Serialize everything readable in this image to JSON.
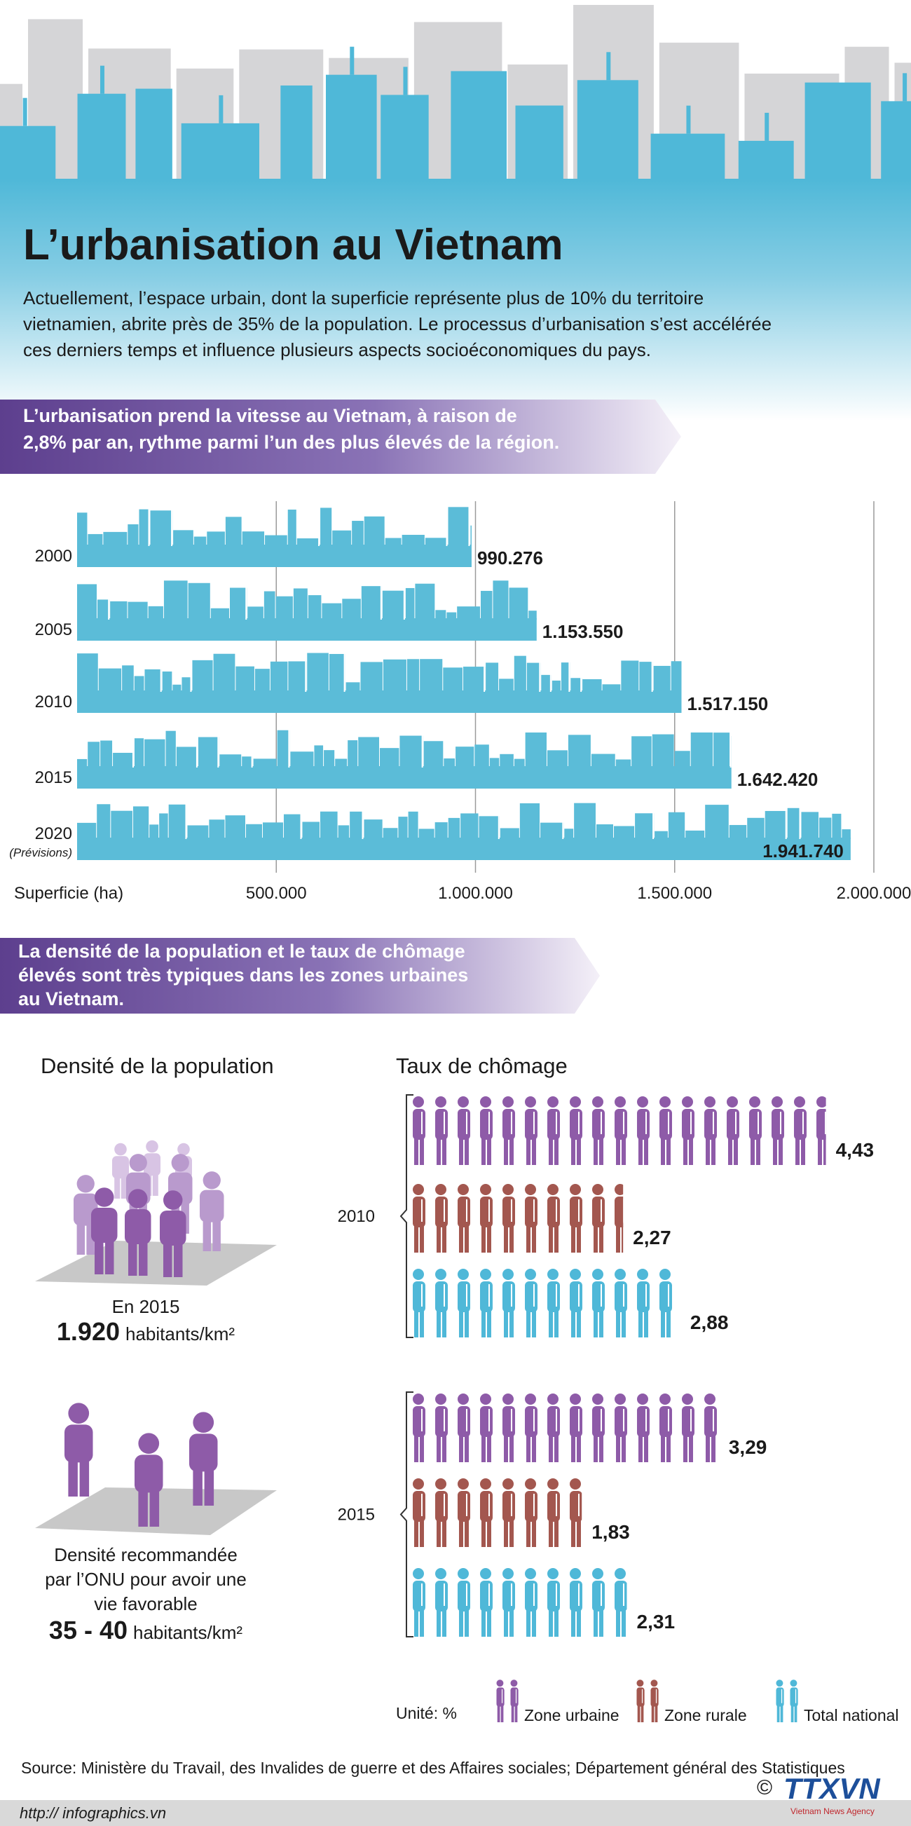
{
  "header": {
    "title": "L’urbanisation au Vietnam",
    "intro": [
      "Actuellement, l’espace urbain, dont la superficie représente plus de 10% du territoire",
      "vietnamien, abrite près de 35% de la population. Le processus d’urbanisation s’est accélérée",
      "ces derniers temps et influence plusieurs aspects socioéconomiques du pays."
    ]
  },
  "banners": [
    [
      "L’urbanisation prend la vitesse au Vietnam, à raison de",
      "2,8% par an, rythme parmi l’un des plus élevés de la région."
    ],
    [
      "La densité de la population et le taux de chômage",
      "élevés sont très typiques dans les zones urbaines",
      "au Vietnam."
    ]
  ],
  "chart_data": [
    {
      "type": "bar",
      "categories": [
        "2000",
        "2005",
        "2010",
        "2015",
        "2020"
      ],
      "category_notes": [
        null,
        null,
        null,
        null,
        "(Prévisions)"
      ],
      "values": [
        990276,
        1153550,
        1517150,
        1642420,
        1941740
      ],
      "value_labels": [
        "990.276",
        "1.153.550",
        "1.517.150",
        "1.642.420",
        "1.941.740"
      ],
      "xlabel": "Superficie (ha)",
      "xlim": [
        0,
        2000000
      ],
      "xticks": [
        {
          "value": 500000,
          "label": "500.000"
        },
        {
          "value": 1000000,
          "label": "1.000.000"
        },
        {
          "value": 1500000,
          "label": "1.500.000"
        },
        {
          "value": 2000000,
          "label": "2.000.000"
        }
      ],
      "color": "#5bbcd8",
      "grid": true
    },
    {
      "type": "pictogram",
      "title": "Taux de chômage",
      "categories": [
        "2010",
        "2015"
      ],
      "unit_label": "Unité: %",
      "series": [
        {
          "name": "Zone urbaine",
          "color": "#8e5ba8",
          "values": [
            4.43,
            3.29
          ],
          "value_labels": [
            "4,43",
            "3,29"
          ]
        },
        {
          "name": "Zone rurale",
          "color": "#a3574f",
          "values": [
            2.27,
            1.83
          ],
          "value_labels": [
            "2,27",
            "1,83"
          ]
        },
        {
          "name": "Total national",
          "color": "#4fb8d8",
          "values": [
            2.88,
            2.31
          ],
          "value_labels": [
            "2,88",
            "2,31"
          ]
        }
      ]
    }
  ],
  "density": {
    "title": "Densité de la population",
    "current": {
      "caption": "En 2015",
      "value": "1.920",
      "unit": "habitants/km²"
    },
    "recommended": {
      "caption": [
        "Densité recommandée",
        "par l’ONU pour avoir une",
        "vie favorable"
      ],
      "value": "35 - 40",
      "unit": "habitants/km²"
    }
  },
  "footer": {
    "source": "Source: Ministère du Travail, des Invalides de guerre et des Affaires sociales; Département général des Statistiques",
    "url": "http:// infographics.vn",
    "copyright": "©",
    "logo": "TTXVN",
    "agency": "Vietnam News Agency"
  }
}
